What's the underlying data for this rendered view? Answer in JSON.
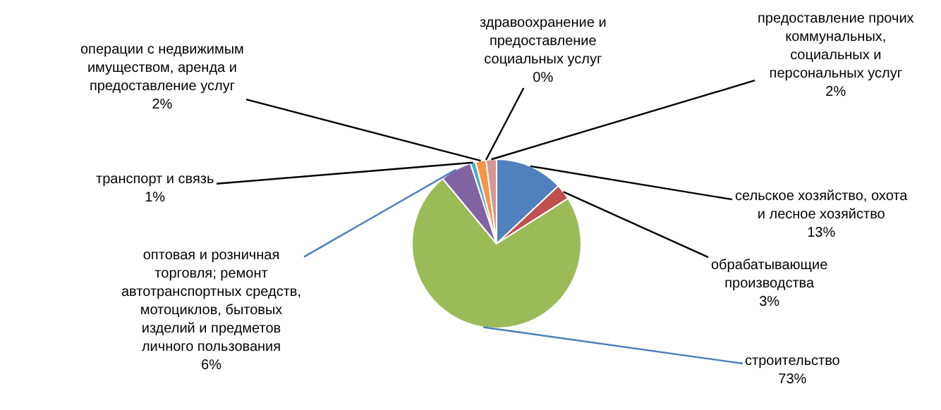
{
  "chart_data": {
    "type": "pie",
    "categories": [
      "сельское хозяйство, охота и лесное хозяйство",
      "обрабатывающие производства",
      "строительство",
      "оптовая и розничная торговля; ремонт автотранспортных средств, мотоциклов, бытовых изделий и предметов личного пользования",
      "транспорт и связь",
      "операции с недвижимым имуществом, аренда и предоставление услуг",
      "здравоохранение и предоставление социальных услуг",
      "предоставление прочих коммунальных, социальных и персональных услуг"
    ],
    "values": [
      13,
      3,
      73,
      6,
      1,
      2,
      0,
      2
    ],
    "value_labels": [
      "13%",
      "3%",
      "73%",
      "6%",
      "1%",
      "2%",
      "0%",
      "2%"
    ],
    "colors": [
      "#4f81bd",
      "#c0504d",
      "#9bbb59",
      "#8064a2",
      "#4bacc6",
      "#f79646",
      "#c6d9f1",
      "#d99694"
    ],
    "legend": false
  }
}
